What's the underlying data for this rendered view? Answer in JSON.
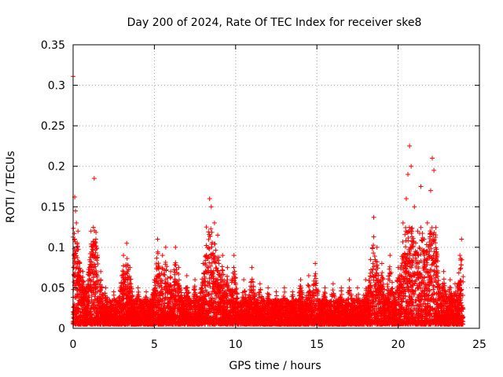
{
  "chart_data": {
    "type": "scatter",
    "title": "Day 200 of 2024, Rate Of TEC Index for receiver ske8",
    "xlabel": "GPS time / hours",
    "ylabel": "ROTI / TECUs",
    "xlim": [
      0,
      25
    ],
    "ylim": [
      0,
      0.35
    ],
    "xticks": [
      0,
      5,
      10,
      15,
      20,
      25
    ],
    "yticks": [
      0,
      0.05,
      0.1,
      0.15,
      0.2,
      0.25,
      0.3,
      0.35
    ],
    "xtick_labels": [
      "0",
      "5",
      "10",
      "15",
      "20",
      "25"
    ],
    "ytick_labels": [
      "0",
      "0.05",
      "0.1",
      "0.15",
      "0.2",
      "0.25",
      "0.3",
      "0.35"
    ],
    "grid": true,
    "marker": "+",
    "series_color": "#ff0000",
    "series": [
      {
        "name": "ROTI",
        "points": [
          [
            0.0,
            0.311
          ],
          [
            0.05,
            0.09
          ],
          [
            0.1,
            0.162
          ],
          [
            0.15,
            0.145
          ],
          [
            0.2,
            0.13
          ],
          [
            0.25,
            0.1
          ],
          [
            0.3,
            0.12
          ],
          [
            0.4,
            0.08
          ],
          [
            0.5,
            0.06
          ],
          [
            0.6,
            0.07
          ],
          [
            0.8,
            0.05
          ],
          [
            1.0,
            0.065
          ],
          [
            1.1,
            0.12
          ],
          [
            1.2,
            0.1
          ],
          [
            1.3,
            0.185
          ],
          [
            1.4,
            0.11
          ],
          [
            1.5,
            0.09
          ],
          [
            1.7,
            0.07
          ],
          [
            2.0,
            0.05
          ],
          [
            2.5,
            0.045
          ],
          [
            3.0,
            0.065
          ],
          [
            3.1,
            0.09
          ],
          [
            3.3,
            0.105
          ],
          [
            3.5,
            0.075
          ],
          [
            4.0,
            0.05
          ],
          [
            4.5,
            0.045
          ],
          [
            5.0,
            0.06
          ],
          [
            5.2,
            0.11
          ],
          [
            5.5,
            0.09
          ],
          [
            5.7,
            0.1
          ],
          [
            6.0,
            0.07
          ],
          [
            6.3,
            0.1
          ],
          [
            6.5,
            0.075
          ],
          [
            7.0,
            0.065
          ],
          [
            7.5,
            0.06
          ],
          [
            8.0,
            0.08
          ],
          [
            8.2,
            0.125
          ],
          [
            8.4,
            0.16
          ],
          [
            8.5,
            0.15
          ],
          [
            8.7,
            0.13
          ],
          [
            8.9,
            0.115
          ],
          [
            9.2,
            0.09
          ],
          [
            9.5,
            0.075
          ],
          [
            9.9,
            0.09
          ],
          [
            10.5,
            0.06
          ],
          [
            11.0,
            0.075
          ],
          [
            11.5,
            0.055
          ],
          [
            12.0,
            0.05
          ],
          [
            12.5,
            0.045
          ],
          [
            13.0,
            0.05
          ],
          [
            13.5,
            0.045
          ],
          [
            14.0,
            0.06
          ],
          [
            14.5,
            0.065
          ],
          [
            14.9,
            0.08
          ],
          [
            15.5,
            0.05
          ],
          [
            16.0,
            0.055
          ],
          [
            16.5,
            0.05
          ],
          [
            17.0,
            0.06
          ],
          [
            17.5,
            0.05
          ],
          [
            18.0,
            0.06
          ],
          [
            18.3,
            0.085
          ],
          [
            18.5,
            0.137
          ],
          [
            18.7,
            0.1
          ],
          [
            19.0,
            0.08
          ],
          [
            19.5,
            0.09
          ],
          [
            20.0,
            0.075
          ],
          [
            20.3,
            0.13
          ],
          [
            20.5,
            0.16
          ],
          [
            20.6,
            0.19
          ],
          [
            20.7,
            0.225
          ],
          [
            20.8,
            0.2
          ],
          [
            21.0,
            0.15
          ],
          [
            21.2,
            0.12
          ],
          [
            21.4,
            0.175
          ],
          [
            21.6,
            0.11
          ],
          [
            21.8,
            0.13
          ],
          [
            22.0,
            0.17
          ],
          [
            22.1,
            0.21
          ],
          [
            22.2,
            0.195
          ],
          [
            22.4,
            0.09
          ],
          [
            22.8,
            0.07
          ],
          [
            23.2,
            0.06
          ],
          [
            23.5,
            0.055
          ],
          [
            23.8,
            0.09
          ],
          [
            23.9,
            0.11
          ]
        ]
      }
    ]
  }
}
